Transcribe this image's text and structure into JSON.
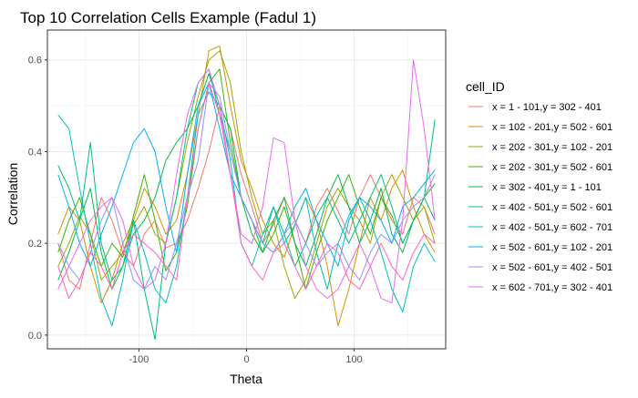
{
  "chart_data": {
    "type": "line",
    "title": "Top 10 Correlation Cells Example (Fadul 1)",
    "xlabel": "Theta",
    "ylabel": "Correlation",
    "xlim": [
      -185,
      185
    ],
    "ylim": [
      -0.03,
      0.665
    ],
    "x_ticks": [
      -100,
      0,
      100
    ],
    "x_tick_labels": [
      "-100",
      "0",
      "100"
    ],
    "y_ticks": [
      0.0,
      0.2,
      0.4,
      0.6
    ],
    "y_tick_labels": [
      "0.0",
      "0.2",
      "0.4",
      "0.6"
    ],
    "grid": true,
    "legend_title": "cell_ID",
    "legend_position": "right",
    "x": [
      -175,
      -165,
      -155,
      -145,
      -135,
      -125,
      -115,
      -105,
      -95,
      -85,
      -75,
      -65,
      -55,
      -45,
      -35,
      -25,
      -15,
      -5,
      5,
      15,
      25,
      35,
      45,
      55,
      65,
      75,
      85,
      95,
      105,
      115,
      125,
      135,
      145,
      155,
      165,
      175
    ],
    "series": [
      {
        "name": "x = 1 - 101,y = 302 - 401",
        "color": "#F8766D",
        "values": [
          0.2,
          0.12,
          0.1,
          0.2,
          0.3,
          0.25,
          0.18,
          0.15,
          0.22,
          0.25,
          0.19,
          0.2,
          0.25,
          0.32,
          0.4,
          0.5,
          0.45,
          0.35,
          0.28,
          0.2,
          0.24,
          0.3,
          0.25,
          0.2,
          0.28,
          0.32,
          0.27,
          0.22,
          0.3,
          0.35,
          0.3,
          0.25,
          0.22,
          0.3,
          0.28,
          0.22
        ]
      },
      {
        "name": "x = 102 - 201,y = 502 - 601",
        "color": "#D89000",
        "values": [
          0.22,
          0.28,
          0.25,
          0.15,
          0.07,
          0.12,
          0.2,
          0.25,
          0.32,
          0.28,
          0.22,
          0.25,
          0.35,
          0.48,
          0.62,
          0.63,
          0.5,
          0.38,
          0.32,
          0.25,
          0.2,
          0.17,
          0.24,
          0.3,
          0.25,
          0.15,
          0.02,
          0.1,
          0.2,
          0.3,
          0.25,
          0.32,
          0.36,
          0.28,
          0.22,
          0.18
        ]
      },
      {
        "name": "x = 202 - 301,y = 102 - 201",
        "color": "#A3A500",
        "values": [
          0.15,
          0.2,
          0.26,
          0.22,
          0.12,
          0.15,
          0.18,
          0.24,
          0.28,
          0.22,
          0.2,
          0.3,
          0.42,
          0.52,
          0.6,
          0.62,
          0.55,
          0.4,
          0.3,
          0.22,
          0.25,
          0.15,
          0.08,
          0.12,
          0.2,
          0.28,
          0.32,
          0.28,
          0.25,
          0.2,
          0.3,
          0.35,
          0.3,
          0.25,
          0.28,
          0.2
        ]
      },
      {
        "name": "x = 202 - 301,y = 502 - 601",
        "color": "#39B600",
        "values": [
          0.18,
          0.25,
          0.3,
          0.22,
          0.15,
          0.2,
          0.17,
          0.26,
          0.35,
          0.25,
          0.14,
          0.18,
          0.28,
          0.45,
          0.55,
          0.58,
          0.42,
          0.3,
          0.25,
          0.18,
          0.22,
          0.28,
          0.2,
          0.1,
          0.18,
          0.25,
          0.3,
          0.35,
          0.28,
          0.22,
          0.3,
          0.26,
          0.2,
          0.25,
          0.3,
          0.33
        ]
      },
      {
        "name": "x = 302 - 401,y = 1 - 101",
        "color": "#00BB4E",
        "values": [
          0.12,
          0.18,
          0.25,
          0.32,
          0.18,
          0.1,
          0.15,
          0.22,
          0.25,
          0.3,
          0.38,
          0.42,
          0.45,
          0.5,
          0.57,
          0.5,
          0.45,
          0.3,
          0.22,
          0.18,
          0.25,
          0.3,
          0.2,
          0.15,
          0.22,
          0.3,
          0.35,
          0.28,
          0.2,
          0.25,
          0.32,
          0.22,
          0.18,
          0.25,
          0.3,
          0.25
        ]
      },
      {
        "name": "x = 402 - 501,y = 502 - 601",
        "color": "#00BF7D",
        "values": [
          0.37,
          0.32,
          0.25,
          0.42,
          0.2,
          0.12,
          0.15,
          0.25,
          0.1,
          -0.01,
          0.2,
          0.3,
          0.45,
          0.55,
          0.58,
          0.48,
          0.4,
          0.3,
          0.25,
          0.2,
          0.28,
          0.22,
          0.15,
          0.2,
          0.26,
          0.3,
          0.25,
          0.2,
          0.25,
          0.3,
          0.35,
          0.28,
          0.2,
          0.25,
          0.3,
          0.47
        ]
      },
      {
        "name": "x = 402 - 501,y = 602 - 701",
        "color": "#00BFC4",
        "values": [
          0.48,
          0.45,
          0.32,
          0.2,
          0.08,
          0.02,
          0.12,
          0.25,
          0.18,
          0.1,
          0.07,
          0.15,
          0.3,
          0.48,
          0.53,
          0.5,
          0.38,
          0.2,
          0.15,
          0.22,
          0.28,
          0.2,
          0.24,
          0.3,
          0.18,
          0.1,
          0.2,
          0.26,
          0.3,
          0.25,
          0.18,
          0.1,
          0.05,
          0.15,
          0.2,
          0.16
        ]
      },
      {
        "name": "x = 502 - 601,y = 102 - 201",
        "color": "#00B0F6",
        "values": [
          0.35,
          0.28,
          0.2,
          0.15,
          0.22,
          0.28,
          0.35,
          0.42,
          0.45,
          0.4,
          0.28,
          0.18,
          0.35,
          0.5,
          0.55,
          0.45,
          0.35,
          0.3,
          0.25,
          0.2,
          0.18,
          0.22,
          0.28,
          0.32,
          0.25,
          0.2,
          0.15,
          0.25,
          0.3,
          0.28,
          0.25,
          0.2,
          0.28,
          0.3,
          0.33,
          0.36
        ]
      },
      {
        "name": "x = 502 - 601,y = 402 - 501",
        "color": "#9590FF",
        "values": [
          0.2,
          0.15,
          0.12,
          0.18,
          0.25,
          0.3,
          0.2,
          0.12,
          0.1,
          0.15,
          0.12,
          0.2,
          0.3,
          0.38,
          0.55,
          0.52,
          0.4,
          0.3,
          0.25,
          0.2,
          0.18,
          0.22,
          0.25,
          0.2,
          0.15,
          0.18,
          0.2,
          0.15,
          0.12,
          0.18,
          0.22,
          0.2,
          0.25,
          0.28,
          0.3,
          0.35
        ]
      },
      {
        "name": "x = 602 - 701,y = 302 - 401",
        "color": "#E76BF3",
        "values": [
          0.1,
          0.15,
          0.2,
          0.25,
          0.28,
          0.3,
          0.25,
          0.15,
          0.1,
          0.12,
          0.2,
          0.35,
          0.48,
          0.55,
          0.58,
          0.5,
          0.35,
          0.22,
          0.2,
          0.28,
          0.43,
          0.42,
          0.25,
          0.15,
          0.1,
          0.08,
          0.1,
          0.15,
          0.2,
          0.15,
          0.08,
          0.07,
          0.25,
          0.6,
          0.45,
          0.25
        ]
      },
      {
        "name": "",
        "color": "#FF62BC",
        "values": [
          0.15,
          0.08,
          0.12,
          0.18,
          0.15,
          0.1,
          0.18,
          0.22,
          0.2,
          0.18,
          0.15,
          0.12,
          0.3,
          0.45,
          0.55,
          0.48,
          0.35,
          0.2,
          0.15,
          0.12,
          0.18,
          0.2,
          0.15,
          0.1,
          0.15,
          0.2,
          0.18,
          0.12,
          0.1,
          0.15,
          0.2,
          0.15,
          0.12,
          0.18,
          0.22,
          0.2
        ]
      }
    ]
  }
}
